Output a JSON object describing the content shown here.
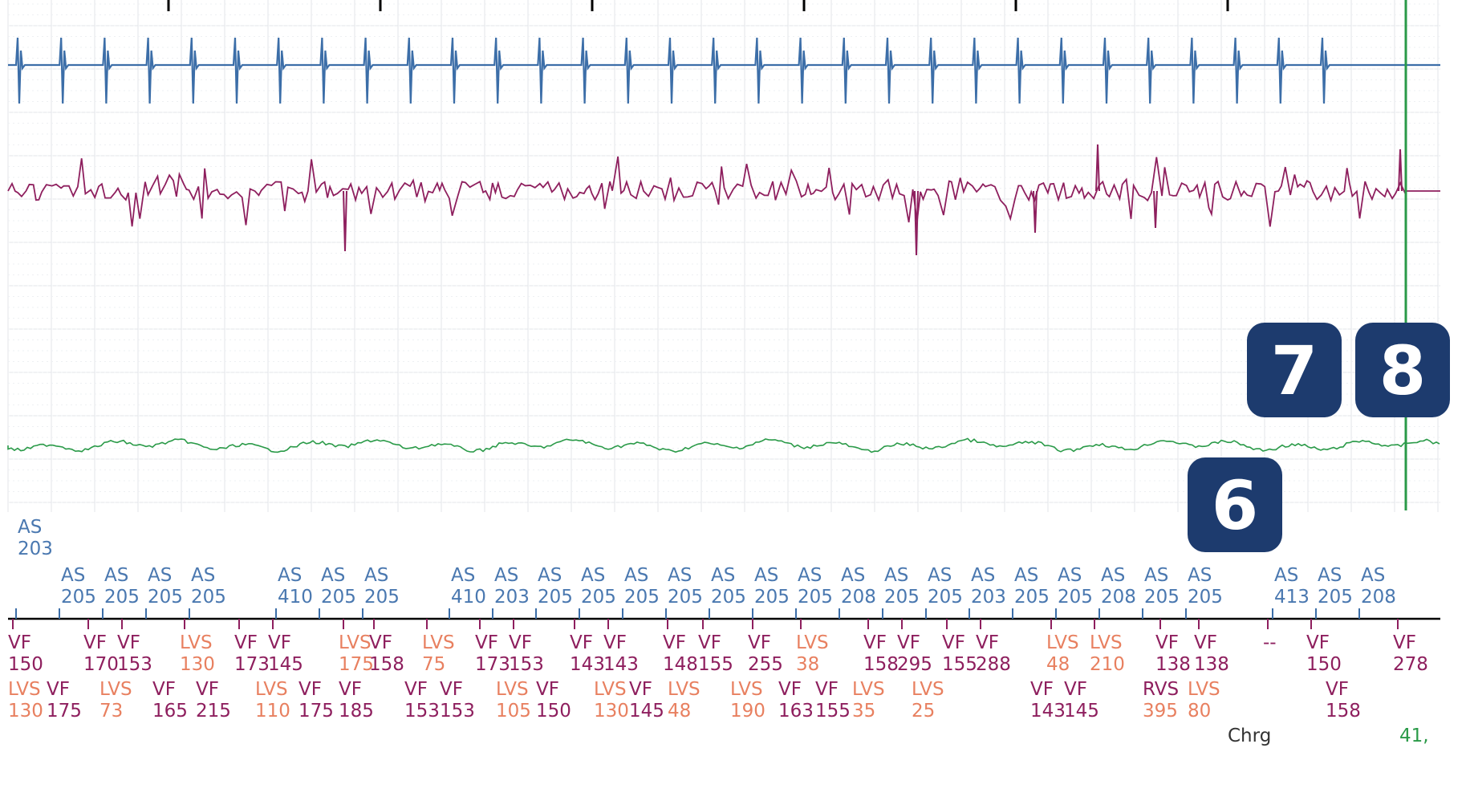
{
  "colors": {
    "atrial": "#3c6ea8",
    "ventricular": "#8e1f5e",
    "shock": "#2a9a48",
    "marker_lvs": "#e88060",
    "badge": "#1d3b6e",
    "grid": "#e3e6ea"
  },
  "chart_data": {
    "type": "line",
    "title": "",
    "xlabel": "",
    "ylabel": "",
    "series": [
      {
        "name": "",
        "channel": "atrial-egm",
        "rhythm": "regular spikes, ~31 beats visible"
      },
      {
        "name": "",
        "channel": "ventricular-egm",
        "rhythm": "irregular, fibrillation"
      },
      {
        "name": "",
        "channel": "shock-egm",
        "rhythm": "low-amplitude undulation"
      }
    ],
    "atrial_markers": [
      {
        "code": "AS",
        "value": "203"
      },
      {
        "code": "AS",
        "value": "205"
      },
      {
        "code": "AS",
        "value": "205"
      },
      {
        "code": "AS",
        "value": "205"
      },
      {
        "code": "AS",
        "value": "205"
      },
      {
        "code": "AS",
        "value": "410"
      },
      {
        "code": "AS",
        "value": "205"
      },
      {
        "code": "AS",
        "value": "205"
      },
      {
        "code": "AS",
        "value": "410"
      },
      {
        "code": "AS",
        "value": "203"
      },
      {
        "code": "AS",
        "value": "205"
      },
      {
        "code": "AS",
        "value": "205"
      },
      {
        "code": "AS",
        "value": "205"
      },
      {
        "code": "AS",
        "value": "205"
      },
      {
        "code": "AS",
        "value": "205"
      },
      {
        "code": "AS",
        "value": "205"
      },
      {
        "code": "AS",
        "value": "205"
      },
      {
        "code": "AS",
        "value": "208"
      },
      {
        "code": "AS",
        "value": "205"
      },
      {
        "code": "AS",
        "value": "205"
      },
      {
        "code": "AS",
        "value": "203"
      },
      {
        "code": "AS",
        "value": "205"
      },
      {
        "code": "AS",
        "value": "205"
      },
      {
        "code": "AS",
        "value": "208"
      },
      {
        "code": "AS",
        "value": "205"
      },
      {
        "code": "AS",
        "value": "205"
      },
      {
        "code": "AS",
        "value": "413"
      },
      {
        "code": "AS",
        "value": "205"
      },
      {
        "code": "AS",
        "value": "208"
      }
    ],
    "ventricular_markers_row1": [
      {
        "code": "VF",
        "value": "150"
      },
      {
        "code": "VF",
        "value": "170"
      },
      {
        "code": "VF",
        "value": "153"
      },
      {
        "code": "LVS",
        "value": "130"
      },
      {
        "code": "VF",
        "value": "173"
      },
      {
        "code": "VF",
        "value": "145"
      },
      {
        "code": "LVS",
        "value": "175"
      },
      {
        "code": "VF",
        "value": "158"
      },
      {
        "code": "LVS",
        "value": "75"
      },
      {
        "code": "VF",
        "value": "173"
      },
      {
        "code": "VF",
        "value": "153"
      },
      {
        "code": "VF",
        "value": "143"
      },
      {
        "code": "VF",
        "value": "143"
      },
      {
        "code": "VF",
        "value": "148"
      },
      {
        "code": "VF",
        "value": "155"
      },
      {
        "code": "VF",
        "value": "255"
      },
      {
        "code": "LVS",
        "value": "38"
      },
      {
        "code": "VF",
        "value": "158"
      },
      {
        "code": "VF",
        "value": "295"
      },
      {
        "code": "VF",
        "value": "155"
      },
      {
        "code": "VF",
        "value": "288"
      },
      {
        "code": "LVS",
        "value": "48"
      },
      {
        "code": "LVS",
        "value": "210"
      },
      {
        "code": "VF",
        "value": "138"
      },
      {
        "code": "VF",
        "value": "138"
      },
      {
        "code": "--",
        "value": ""
      },
      {
        "code": "VF",
        "value": "150"
      },
      {
        "code": "VF",
        "value": "278"
      }
    ],
    "ventricular_markers_row2": [
      {
        "code": "LVS",
        "value": "130"
      },
      {
        "code": "VF",
        "value": "175"
      },
      {
        "code": "LVS",
        "value": "73"
      },
      {
        "code": "VF",
        "value": "165"
      },
      {
        "code": "VF",
        "value": "215"
      },
      {
        "code": "LVS",
        "value": "110"
      },
      {
        "code": "VF",
        "value": "175"
      },
      {
        "code": "VF",
        "value": "185"
      },
      {
        "code": "VF",
        "value": "153"
      },
      {
        "code": "VF",
        "value": "153"
      },
      {
        "code": "LVS",
        "value": "105"
      },
      {
        "code": "VF",
        "value": "150"
      },
      {
        "code": "LVS",
        "value": "130"
      },
      {
        "code": "VF",
        "value": "145"
      },
      {
        "code": "LVS",
        "value": "48"
      },
      {
        "code": "LVS",
        "value": "190"
      },
      {
        "code": "VF",
        "value": "163"
      },
      {
        "code": "VF",
        "value": "155"
      },
      {
        "code": "LVS",
        "value": "35"
      },
      {
        "code": "LVS",
        "value": "25"
      },
      {
        "code": "VF",
        "value": "143"
      },
      {
        "code": "VF",
        "value": "145"
      },
      {
        "code": "RVS",
        "value": "395"
      },
      {
        "code": "LVS",
        "value": "80"
      },
      {
        "code": "VF",
        "value": "158"
      }
    ],
    "charge_label": "Chrg",
    "charge_value": "41,",
    "badges": [
      "6",
      "7",
      "8"
    ]
  }
}
